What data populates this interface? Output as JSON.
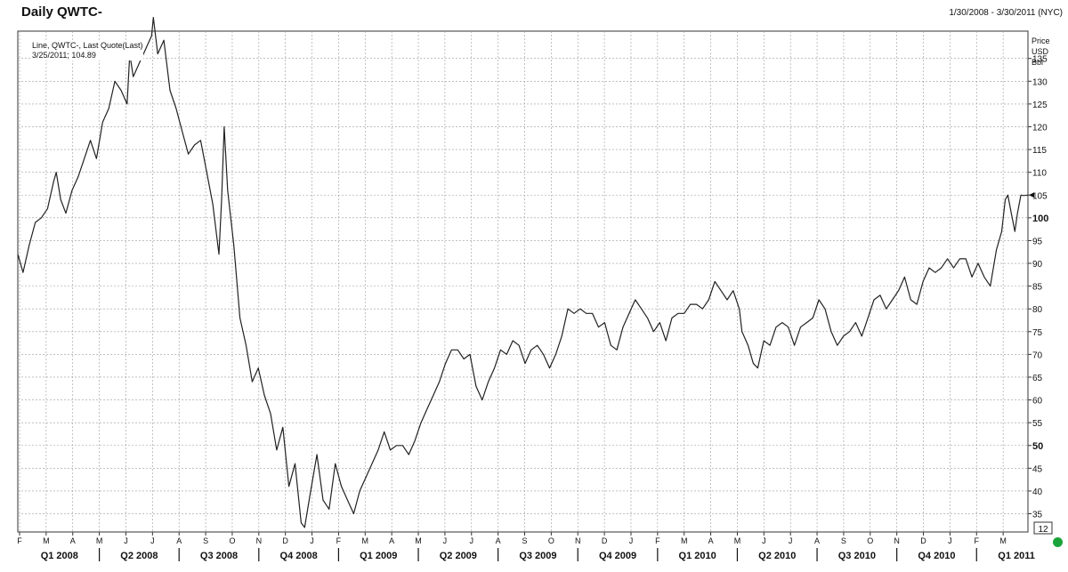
{
  "header": {
    "title": "Daily QWTC-",
    "date_range": "1/30/2008 - 3/30/2011 (NYC)"
  },
  "legend": {
    "line1": "Line, QWTC-, Last Quote(Last)",
    "line2": "3/25/2011; 104.89"
  },
  "axis": {
    "unit_line1": "Price",
    "unit_line2": "USD",
    "unit_line3": "Bbl",
    "scroll_box_label": "12"
  },
  "colors": {
    "line": "#222222",
    "grid": "#9a9a9a",
    "status": "#1aa33a"
  },
  "chart_data": {
    "type": "line",
    "title": "Daily QWTC-",
    "x_range": [
      "2008-01-30",
      "2011-03-30"
    ],
    "ylim": [
      31,
      141
    ],
    "yticks": [
      35,
      40,
      45,
      50,
      55,
      60,
      65,
      70,
      75,
      80,
      85,
      90,
      95,
      100,
      105,
      110,
      115,
      120,
      125,
      130,
      135
    ],
    "ytick_labels_bold": [
      50,
      100
    ],
    "grid": true,
    "last_value_marker": 105,
    "month_ticks": [
      "F",
      "M",
      "A",
      "M",
      "J",
      "J",
      "A",
      "S",
      "O",
      "N",
      "D",
      "J",
      "F",
      "M",
      "A",
      "M",
      "J",
      "J",
      "A",
      "S",
      "O",
      "N",
      "D",
      "J",
      "F",
      "M",
      "A",
      "M",
      "J",
      "J",
      "A",
      "S",
      "O",
      "N",
      "D",
      "J",
      "F",
      "M"
    ],
    "quarter_labels": [
      "Q1 2008",
      "Q2 2008",
      "Q3 2008",
      "Q4 2008",
      "Q1 2009",
      "Q2 2009",
      "Q3 2009",
      "Q4 2009",
      "Q1 2010",
      "Q2 2010",
      "Q3 2010",
      "Q4 2010",
      "Q1 2011"
    ],
    "series": [
      {
        "values": [
          [
            "2008-01-30",
            92
          ],
          [
            "2008-02-05",
            88
          ],
          [
            "2008-02-12",
            94
          ],
          [
            "2008-02-19",
            99
          ],
          [
            "2008-02-26",
            100
          ],
          [
            "2008-03-04",
            102
          ],
          [
            "2008-03-11",
            108
          ],
          [
            "2008-03-14",
            110
          ],
          [
            "2008-03-19",
            104
          ],
          [
            "2008-03-25",
            101
          ],
          [
            "2008-04-01",
            106
          ],
          [
            "2008-04-08",
            109
          ],
          [
            "2008-04-15",
            113
          ],
          [
            "2008-04-22",
            117
          ],
          [
            "2008-04-29",
            113
          ],
          [
            "2008-05-06",
            121
          ],
          [
            "2008-05-13",
            124
          ],
          [
            "2008-05-20",
            130
          ],
          [
            "2008-05-27",
            128
          ],
          [
            "2008-06-03",
            125
          ],
          [
            "2008-06-06",
            136
          ],
          [
            "2008-06-10",
            131
          ],
          [
            "2008-06-17",
            134
          ],
          [
            "2008-06-24",
            137
          ],
          [
            "2008-07-01",
            140
          ],
          [
            "2008-07-03",
            144
          ],
          [
            "2008-07-08",
            136
          ],
          [
            "2008-07-15",
            139
          ],
          [
            "2008-07-22",
            128
          ],
          [
            "2008-07-29",
            124
          ],
          [
            "2008-08-05",
            119
          ],
          [
            "2008-08-12",
            114
          ],
          [
            "2008-08-19",
            116
          ],
          [
            "2008-08-26",
            117
          ],
          [
            "2008-09-02",
            110
          ],
          [
            "2008-09-09",
            103
          ],
          [
            "2008-09-16",
            92
          ],
          [
            "2008-09-19",
            104
          ],
          [
            "2008-09-22",
            120
          ],
          [
            "2008-09-26",
            106
          ],
          [
            "2008-10-03",
            94
          ],
          [
            "2008-10-10",
            78
          ],
          [
            "2008-10-17",
            72
          ],
          [
            "2008-10-24",
            64
          ],
          [
            "2008-10-31",
            67
          ],
          [
            "2008-11-07",
            61
          ],
          [
            "2008-11-14",
            57
          ],
          [
            "2008-11-21",
            49
          ],
          [
            "2008-11-28",
            54
          ],
          [
            "2008-12-05",
            41
          ],
          [
            "2008-12-12",
            46
          ],
          [
            "2008-12-19",
            33
          ],
          [
            "2008-12-23",
            32
          ],
          [
            "2008-12-29",
            39
          ],
          [
            "2009-01-06",
            48
          ],
          [
            "2009-01-13",
            38
          ],
          [
            "2009-01-20",
            36
          ],
          [
            "2009-01-27",
            46
          ],
          [
            "2009-02-03",
            41
          ],
          [
            "2009-02-10",
            38
          ],
          [
            "2009-02-17",
            35
          ],
          [
            "2009-02-24",
            40
          ],
          [
            "2009-03-03",
            43
          ],
          [
            "2009-03-10",
            46
          ],
          [
            "2009-03-17",
            49
          ],
          [
            "2009-03-24",
            53
          ],
          [
            "2009-03-31",
            49
          ],
          [
            "2009-04-07",
            50
          ],
          [
            "2009-04-14",
            50
          ],
          [
            "2009-04-21",
            48
          ],
          [
            "2009-04-28",
            51
          ],
          [
            "2009-05-05",
            55
          ],
          [
            "2009-05-12",
            58
          ],
          [
            "2009-05-19",
            61
          ],
          [
            "2009-05-26",
            64
          ],
          [
            "2009-06-02",
            68
          ],
          [
            "2009-06-09",
            71
          ],
          [
            "2009-06-16",
            71
          ],
          [
            "2009-06-23",
            69
          ],
          [
            "2009-06-30",
            70
          ],
          [
            "2009-07-07",
            63
          ],
          [
            "2009-07-14",
            60
          ],
          [
            "2009-07-21",
            64
          ],
          [
            "2009-07-28",
            67
          ],
          [
            "2009-08-04",
            71
          ],
          [
            "2009-08-11",
            70
          ],
          [
            "2009-08-18",
            73
          ],
          [
            "2009-08-25",
            72
          ],
          [
            "2009-09-01",
            68
          ],
          [
            "2009-09-08",
            71
          ],
          [
            "2009-09-15",
            72
          ],
          [
            "2009-09-22",
            70
          ],
          [
            "2009-09-29",
            67
          ],
          [
            "2009-10-06",
            70
          ],
          [
            "2009-10-13",
            74
          ],
          [
            "2009-10-20",
            80
          ],
          [
            "2009-10-27",
            79
          ],
          [
            "2009-11-03",
            80
          ],
          [
            "2009-11-10",
            79
          ],
          [
            "2009-11-17",
            79
          ],
          [
            "2009-11-24",
            76
          ],
          [
            "2009-12-01",
            77
          ],
          [
            "2009-12-08",
            72
          ],
          [
            "2009-12-15",
            71
          ],
          [
            "2009-12-22",
            76
          ],
          [
            "2009-12-29",
            79
          ],
          [
            "2010-01-05",
            82
          ],
          [
            "2010-01-12",
            80
          ],
          [
            "2010-01-19",
            78
          ],
          [
            "2010-01-26",
            75
          ],
          [
            "2010-02-02",
            77
          ],
          [
            "2010-02-09",
            73
          ],
          [
            "2010-02-16",
            78
          ],
          [
            "2010-02-23",
            79
          ],
          [
            "2010-03-02",
            79
          ],
          [
            "2010-03-09",
            81
          ],
          [
            "2010-03-16",
            81
          ],
          [
            "2010-03-23",
            80
          ],
          [
            "2010-03-30",
            82
          ],
          [
            "2010-04-06",
            86
          ],
          [
            "2010-04-13",
            84
          ],
          [
            "2010-04-20",
            82
          ],
          [
            "2010-04-27",
            84
          ],
          [
            "2010-05-04",
            80
          ],
          [
            "2010-05-07",
            75
          ],
          [
            "2010-05-14",
            72
          ],
          [
            "2010-05-20",
            68
          ],
          [
            "2010-05-25",
            67
          ],
          [
            "2010-06-01",
            73
          ],
          [
            "2010-06-08",
            72
          ],
          [
            "2010-06-15",
            76
          ],
          [
            "2010-06-22",
            77
          ],
          [
            "2010-06-29",
            76
          ],
          [
            "2010-07-06",
            72
          ],
          [
            "2010-07-13",
            76
          ],
          [
            "2010-07-20",
            77
          ],
          [
            "2010-07-27",
            78
          ],
          [
            "2010-08-03",
            82
          ],
          [
            "2010-08-10",
            80
          ],
          [
            "2010-08-17",
            75
          ],
          [
            "2010-08-24",
            72
          ],
          [
            "2010-08-31",
            74
          ],
          [
            "2010-09-07",
            75
          ],
          [
            "2010-09-14",
            77
          ],
          [
            "2010-09-21",
            74
          ],
          [
            "2010-09-28",
            78
          ],
          [
            "2010-10-05",
            82
          ],
          [
            "2010-10-12",
            83
          ],
          [
            "2010-10-19",
            80
          ],
          [
            "2010-10-26",
            82
          ],
          [
            "2010-11-02",
            84
          ],
          [
            "2010-11-09",
            87
          ],
          [
            "2010-11-16",
            82
          ],
          [
            "2010-11-23",
            81
          ],
          [
            "2010-11-30",
            86
          ],
          [
            "2010-12-07",
            89
          ],
          [
            "2010-12-14",
            88
          ],
          [
            "2010-12-21",
            89
          ],
          [
            "2010-12-28",
            91
          ],
          [
            "2011-01-04",
            89
          ],
          [
            "2011-01-11",
            91
          ],
          [
            "2011-01-18",
            91
          ],
          [
            "2011-01-25",
            87
          ],
          [
            "2011-02-01",
            90
          ],
          [
            "2011-02-08",
            87
          ],
          [
            "2011-02-15",
            85
          ],
          [
            "2011-02-22",
            93
          ],
          [
            "2011-02-28",
            97
          ],
          [
            "2011-03-04",
            104
          ],
          [
            "2011-03-07",
            105
          ],
          [
            "2011-03-11",
            101
          ],
          [
            "2011-03-15",
            97
          ],
          [
            "2011-03-18",
            101
          ],
          [
            "2011-03-22",
            105
          ],
          [
            "2011-03-25",
            104.89
          ],
          [
            "2011-03-30",
            105
          ]
        ]
      }
    ]
  }
}
